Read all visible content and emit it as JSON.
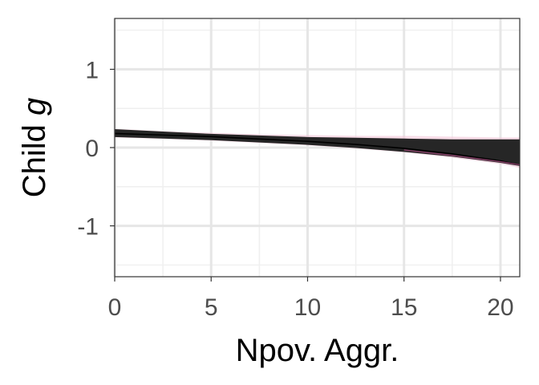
{
  "chart_data": {
    "type": "area",
    "xlabel": "Npov. Aggr.",
    "ylabel_main": "Child ",
    "ylabel_italic": "g",
    "xlim": [
      0,
      21
    ],
    "ylim": [
      -1.65,
      1.65
    ],
    "x_ticks": [
      0,
      5,
      10,
      15,
      20
    ],
    "x_tick_labels": [
      "0",
      "5",
      "10",
      "15",
      "20"
    ],
    "y_ticks": [
      -1,
      0,
      1
    ],
    "y_tick_labels": [
      "-1",
      "0",
      "1"
    ],
    "grid": true,
    "legend": "none",
    "band": {
      "x": [
        0,
        2.5,
        5,
        7.5,
        10,
        12.5,
        15,
        17.5,
        20,
        21
      ],
      "upper": [
        0.23,
        0.2,
        0.17,
        0.15,
        0.13,
        0.12,
        0.11,
        0.1,
        0.1,
        0.1
      ],
      "lower": [
        0.14,
        0.12,
        0.1,
        0.07,
        0.04,
        0.0,
        -0.05,
        -0.11,
        -0.19,
        -0.23
      ],
      "color": "#262626"
    },
    "outer_band": {
      "upper": [
        0.24,
        0.21,
        0.19,
        0.17,
        0.16,
        0.15,
        0.15,
        0.14,
        0.13,
        0.13
      ],
      "lower": [
        0.13,
        0.11,
        0.09,
        0.06,
        0.03,
        -0.01,
        -0.06,
        -0.13,
        -0.21,
        -0.26
      ],
      "color": "#f3c6d8"
    },
    "edge_line": {
      "x": [
        0,
        2.5,
        5,
        7.5,
        10,
        12.5,
        15,
        17.5,
        20,
        21
      ],
      "y": [
        0.18,
        0.16,
        0.14,
        0.11,
        0.08,
        0.04,
        -0.01,
        -0.08,
        -0.17,
        -0.22
      ],
      "color": "#000000"
    },
    "accent_line": {
      "x": [
        15,
        17.5,
        20,
        21
      ],
      "y": [
        -0.03,
        -0.1,
        -0.18,
        -0.22
      ],
      "color": "#a24a7c"
    }
  }
}
